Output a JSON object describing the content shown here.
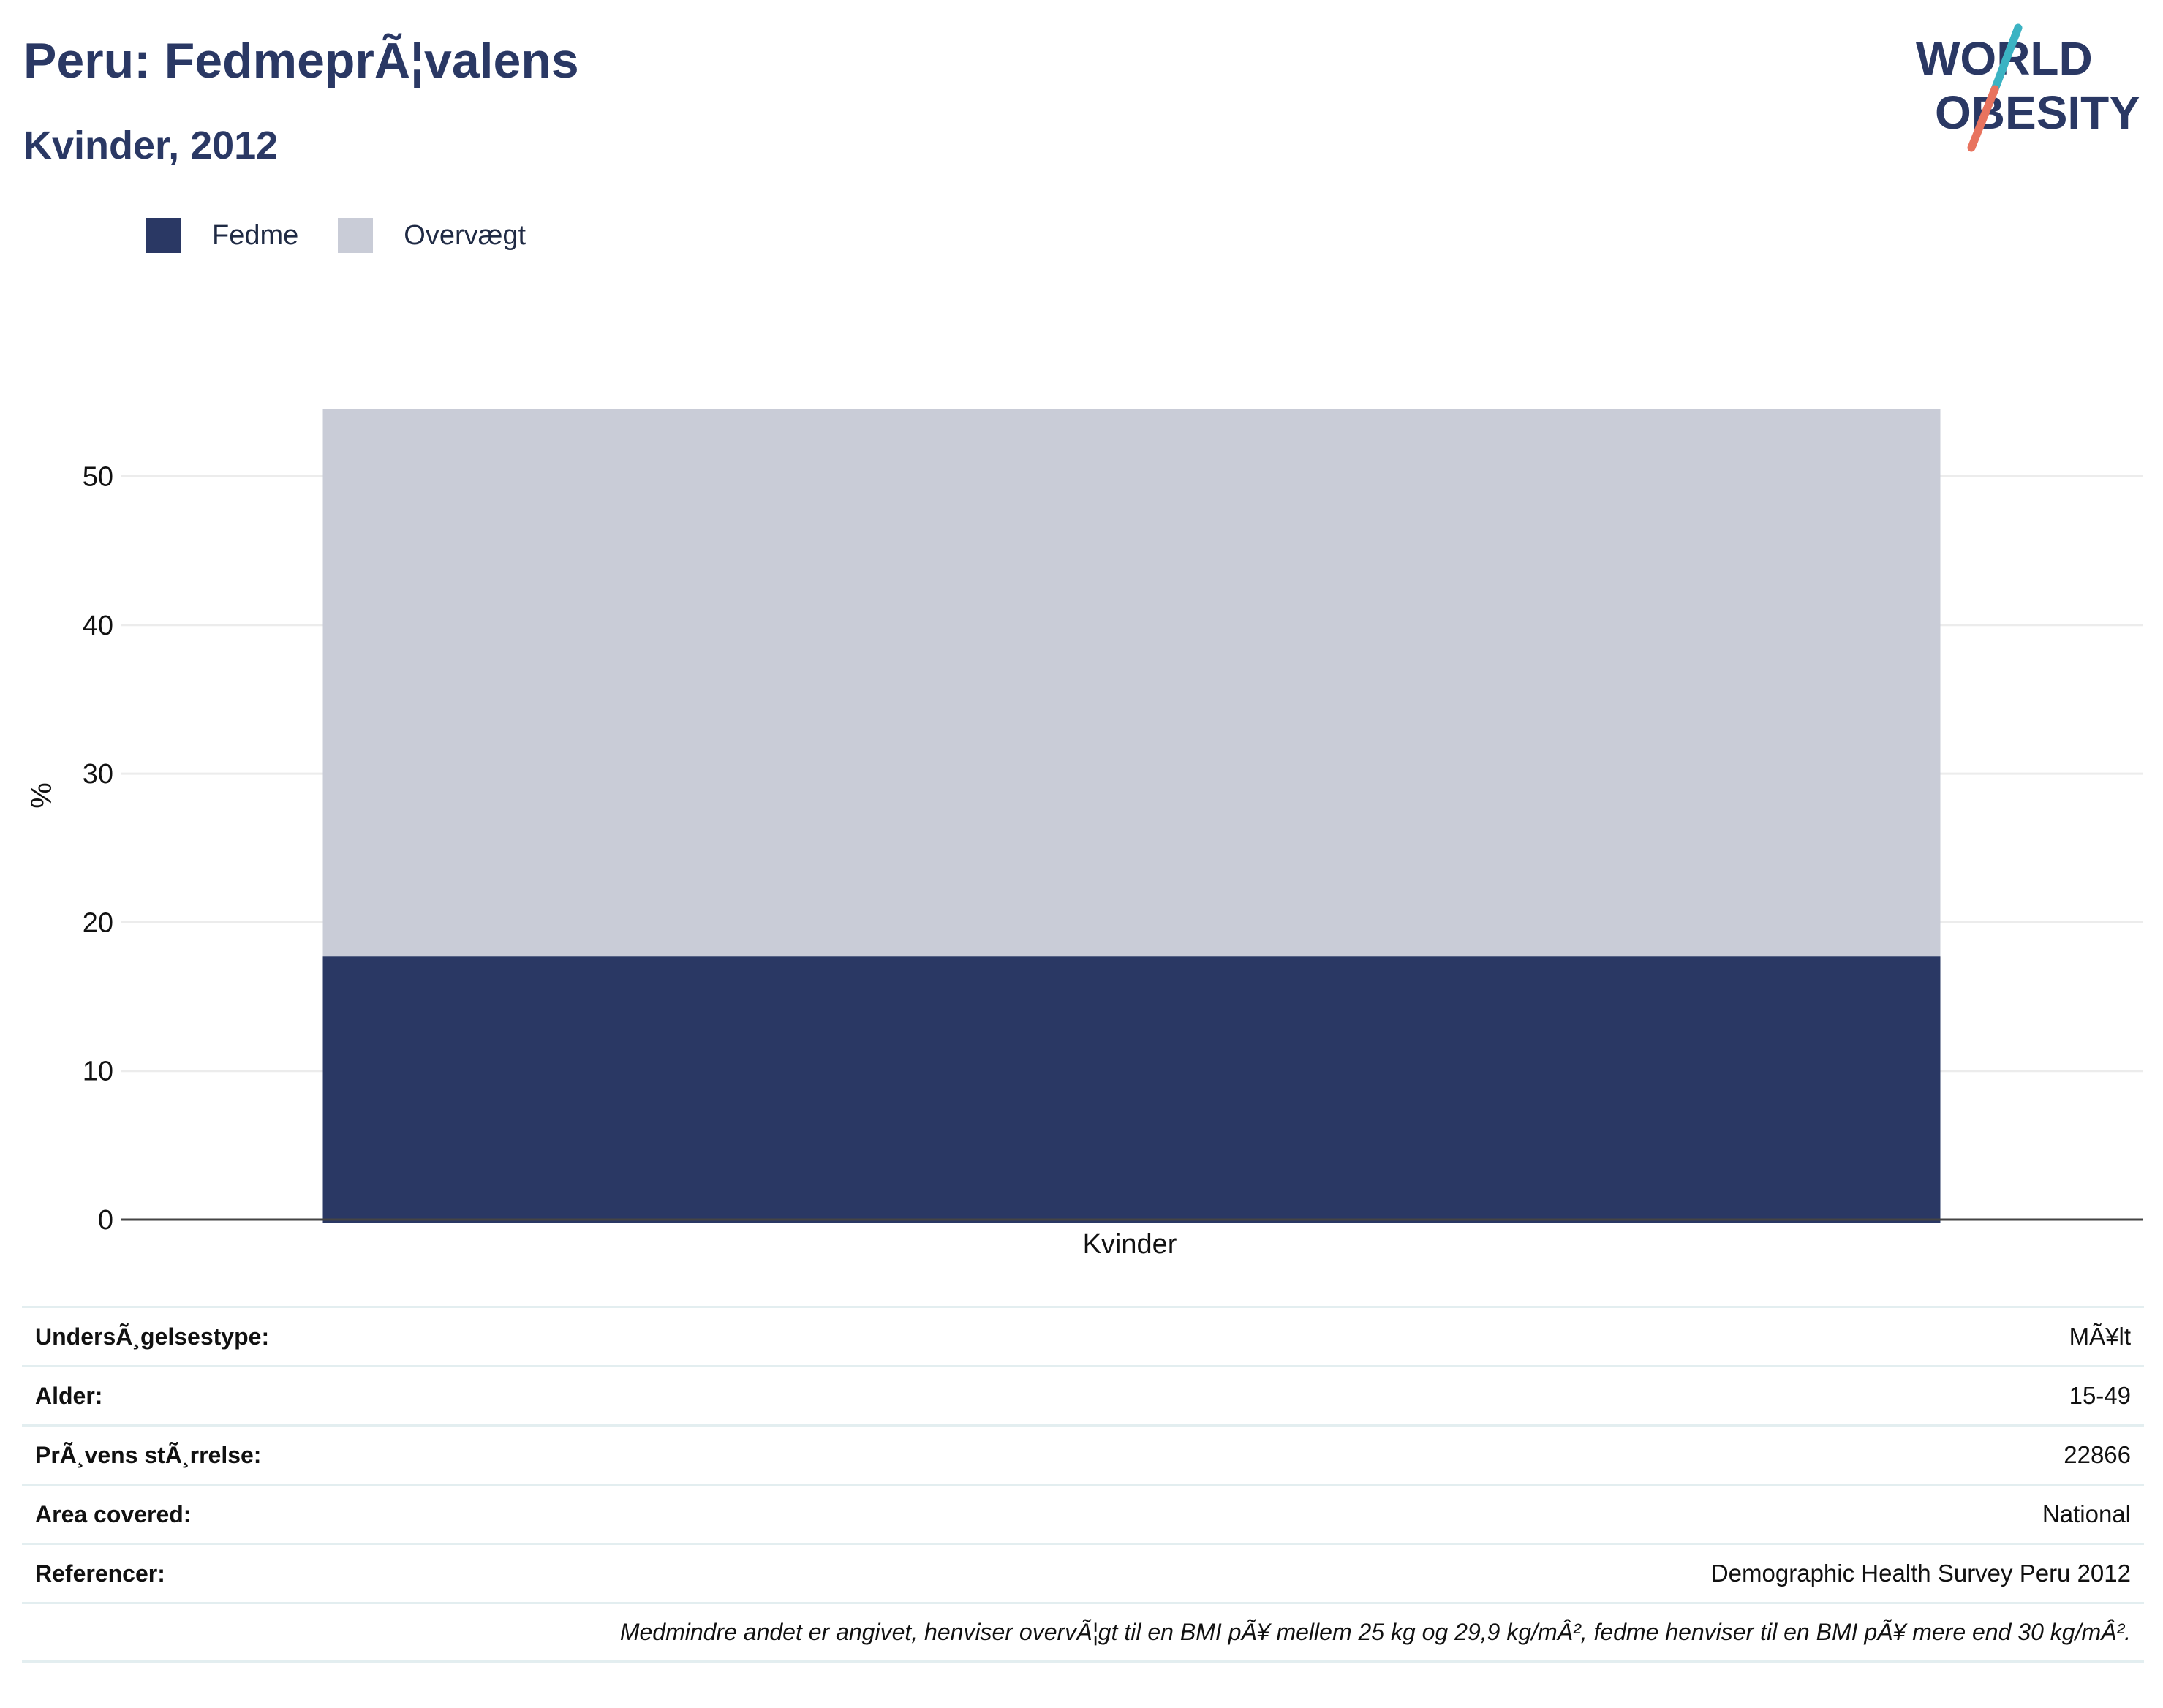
{
  "header": {
    "title": "Peru: FedmeprÃ¦valens",
    "subtitle": "Kvinder, 2012"
  },
  "logo": {
    "line1": "WORLD",
    "line2": "OBESITY",
    "colors": {
      "text": "#2a3864",
      "slash_top": "#3bb3c3",
      "slash_bottom": "#e8735e"
    }
  },
  "chart_data": {
    "type": "bar",
    "stacked": true,
    "categories": [
      "Kvinder"
    ],
    "series": [
      {
        "name": "Fedme",
        "values": [
          17.7
        ],
        "color": "#2a3864"
      },
      {
        "name": "Overvægt",
        "values": [
          36.8
        ],
        "color": "#c9ccd7"
      }
    ],
    "xlabel": "",
    "ylabel": "%",
    "ylim": [
      0,
      54.5
    ],
    "yticks": [
      0,
      10,
      20,
      30,
      40,
      50
    ],
    "grid": true,
    "legend": "top-left"
  },
  "info": {
    "rows": [
      {
        "key": "UndersÃ¸gelsestype:",
        "value": "MÃ¥lt"
      },
      {
        "key": "Alder:",
        "value": "15-49"
      },
      {
        "key": "PrÃ¸vens stÃ¸rrelse:",
        "value": "22866"
      },
      {
        "key": "Area covered:",
        "value": "National"
      },
      {
        "key": "Referencer:",
        "value": "Demographic Health Survey Peru 2012"
      }
    ],
    "note": "Medmindre andet er angivet, henviser overvÃ¦gt til en BMI pÃ¥ mellem 25 kg og 29,9 kg/mÂ², fedme henviser til en BMI pÃ¥ mere end 30 kg/mÂ²."
  }
}
